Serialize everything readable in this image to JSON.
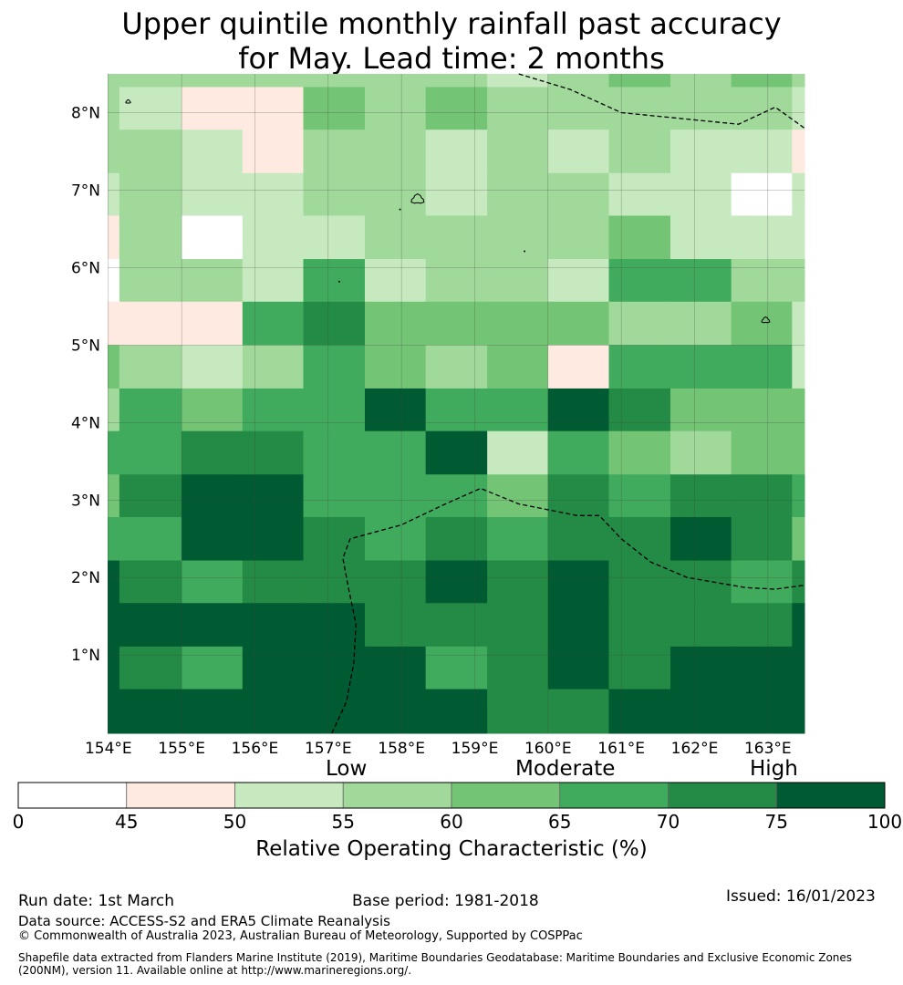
{
  "title": {
    "line1": "Upper quintile monthly rainfall past accuracy",
    "line2": "for May. Lead time: 2 months"
  },
  "map": {
    "lon_ticks": [
      "154°E",
      "155°E",
      "156°E",
      "157°E",
      "158°E",
      "159°E",
      "160°E",
      "161°E",
      "162°E",
      "163°E"
    ],
    "lat_ticks": [
      "8°N",
      "7°N",
      "6°N",
      "5°N",
      "4°N",
      "3°N",
      "2°N",
      "1°N"
    ],
    "lon_range": [
      153.99,
      163.5
    ],
    "lat_range": [
      -0.01,
      8.5
    ],
    "cell_lon_edges": [
      153.99,
      154.15,
      155.0,
      155.83,
      156.66,
      157.5,
      158.33,
      159.17,
      160.0,
      160.83,
      161.67,
      162.5,
      163.33,
      163.5
    ],
    "cell_lat_edges": [
      8.5,
      8.33,
      7.78,
      7.22,
      6.67,
      6.11,
      5.56,
      5.0,
      4.44,
      3.89,
      3.33,
      2.78,
      2.22,
      1.67,
      1.11,
      0.56,
      -0.01
    ],
    "roc_grid": [
      [
        57,
        57,
        57,
        57,
        57,
        57,
        57,
        52,
        57,
        62,
        57,
        62,
        57
      ],
      [
        57,
        52,
        47,
        47,
        62,
        57,
        62,
        57,
        57,
        57,
        57,
        57,
        52
      ],
      [
        57,
        57,
        52,
        47,
        57,
        57,
        52,
        57,
        52,
        57,
        52,
        52,
        47
      ],
      [
        52,
        57,
        52,
        52,
        57,
        57,
        52,
        57,
        57,
        52,
        52,
        0,
        52
      ],
      [
        47,
        57,
        0,
        52,
        52,
        57,
        57,
        57,
        57,
        62,
        52,
        52,
        52
      ],
      [
        0,
        57,
        57,
        52,
        67,
        52,
        57,
        57,
        52,
        67,
        67,
        57,
        57
      ],
      [
        47,
        47,
        47,
        67,
        72,
        62,
        62,
        62,
        62,
        57,
        57,
        62,
        52
      ],
      [
        62,
        57,
        52,
        57,
        67,
        62,
        57,
        62,
        47,
        67,
        67,
        67,
        52
      ],
      [
        57,
        67,
        62,
        67,
        67,
        77,
        67,
        67,
        77,
        72,
        62,
        62,
        62
      ],
      [
        67,
        67,
        72,
        72,
        67,
        67,
        77,
        52,
        67,
        62,
        57,
        62,
        62
      ],
      [
        62,
        72,
        77,
        77,
        67,
        67,
        67,
        62,
        72,
        67,
        72,
        72,
        67
      ],
      [
        67,
        67,
        77,
        77,
        72,
        67,
        72,
        67,
        72,
        72,
        77,
        72,
        62
      ],
      [
        77,
        72,
        67,
        72,
        72,
        72,
        77,
        72,
        77,
        72,
        72,
        67,
        72
      ],
      [
        77,
        77,
        77,
        77,
        77,
        72,
        72,
        72,
        77,
        72,
        72,
        72,
        77
      ],
      [
        77,
        72,
        67,
        77,
        77,
        77,
        67,
        72,
        77,
        72,
        77,
        77,
        77
      ],
      [
        77,
        77,
        77,
        77,
        77,
        77,
        77,
        72,
        72,
        77,
        77,
        77,
        77
      ]
    ],
    "boundaries": [
      [
        [
          159.6,
          8.5
        ],
        [
          160.3,
          8.3
        ],
        [
          161.0,
          8.0
        ],
        [
          162.6,
          7.85
        ],
        [
          163.1,
          8.07
        ],
        [
          163.5,
          7.8
        ]
      ],
      [
        [
          157.05,
          -0.01
        ],
        [
          157.25,
          0.4
        ],
        [
          157.35,
          0.9
        ],
        [
          157.38,
          1.4
        ],
        [
          157.28,
          1.85
        ],
        [
          157.2,
          2.25
        ],
        [
          157.3,
          2.5
        ],
        [
          158.0,
          2.68
        ],
        [
          158.6,
          2.95
        ],
        [
          159.08,
          3.15
        ],
        [
          159.6,
          2.95
        ],
        [
          160.4,
          2.8
        ],
        [
          160.7,
          2.8
        ],
        [
          161.0,
          2.5
        ],
        [
          161.4,
          2.2
        ],
        [
          161.9,
          2.0
        ],
        [
          162.7,
          1.87
        ],
        [
          163.1,
          1.85
        ],
        [
          163.5,
          1.9
        ]
      ]
    ],
    "islands": [
      {
        "name": "Pohnpei",
        "lon": 158.22,
        "lat": 6.88
      },
      {
        "name": "Kosrae",
        "lon": 162.97,
        "lat": 5.32
      },
      {
        "name": "Islet",
        "lon": 154.27,
        "lat": 8.14
      }
    ],
    "dots": [
      {
        "lon": 157.15,
        "lat": 5.82
      },
      {
        "lon": 159.68,
        "lat": 6.21
      },
      {
        "lon": 157.98,
        "lat": 6.75
      }
    ]
  },
  "colorbar": {
    "boundaries": [
      0,
      45,
      50,
      55,
      60,
      65,
      70,
      75,
      100
    ],
    "colors": [
      "#ffffff",
      "#feeae0",
      "#c7e9c0",
      "#a1d99b",
      "#74c476",
      "#41ab5d",
      "#238b45",
      "#005a32"
    ],
    "tick_labels": [
      "0",
      "45",
      "50",
      "55",
      "60",
      "65",
      "70",
      "75",
      "100"
    ],
    "label_low": "Low",
    "label_moderate": "Moderate",
    "label_high": "High",
    "title": "Relative Operating Characteristic (%)"
  },
  "footer": {
    "run_date": "Run date: 1st March",
    "base_period": "Base period: 1981-2018",
    "issued": "Issued: 16/01/2023",
    "data_source": "Data source: ACCESS-S2 and ERA5 Climate Reanalysis",
    "copyright": "© Commonwealth of Australia 2023, Australian Bureau of Meteorology, Supported by COSPPac",
    "shapefile_line1": "Shapefile data extracted from Flanders Marine Institute (2019), Maritime Boundaries Geodatabase: Maritime Boundaries and Exclusive Economic Zones",
    "shapefile_line2": "(200NM), version 11. Available online at http://www.marineregions.org/."
  }
}
